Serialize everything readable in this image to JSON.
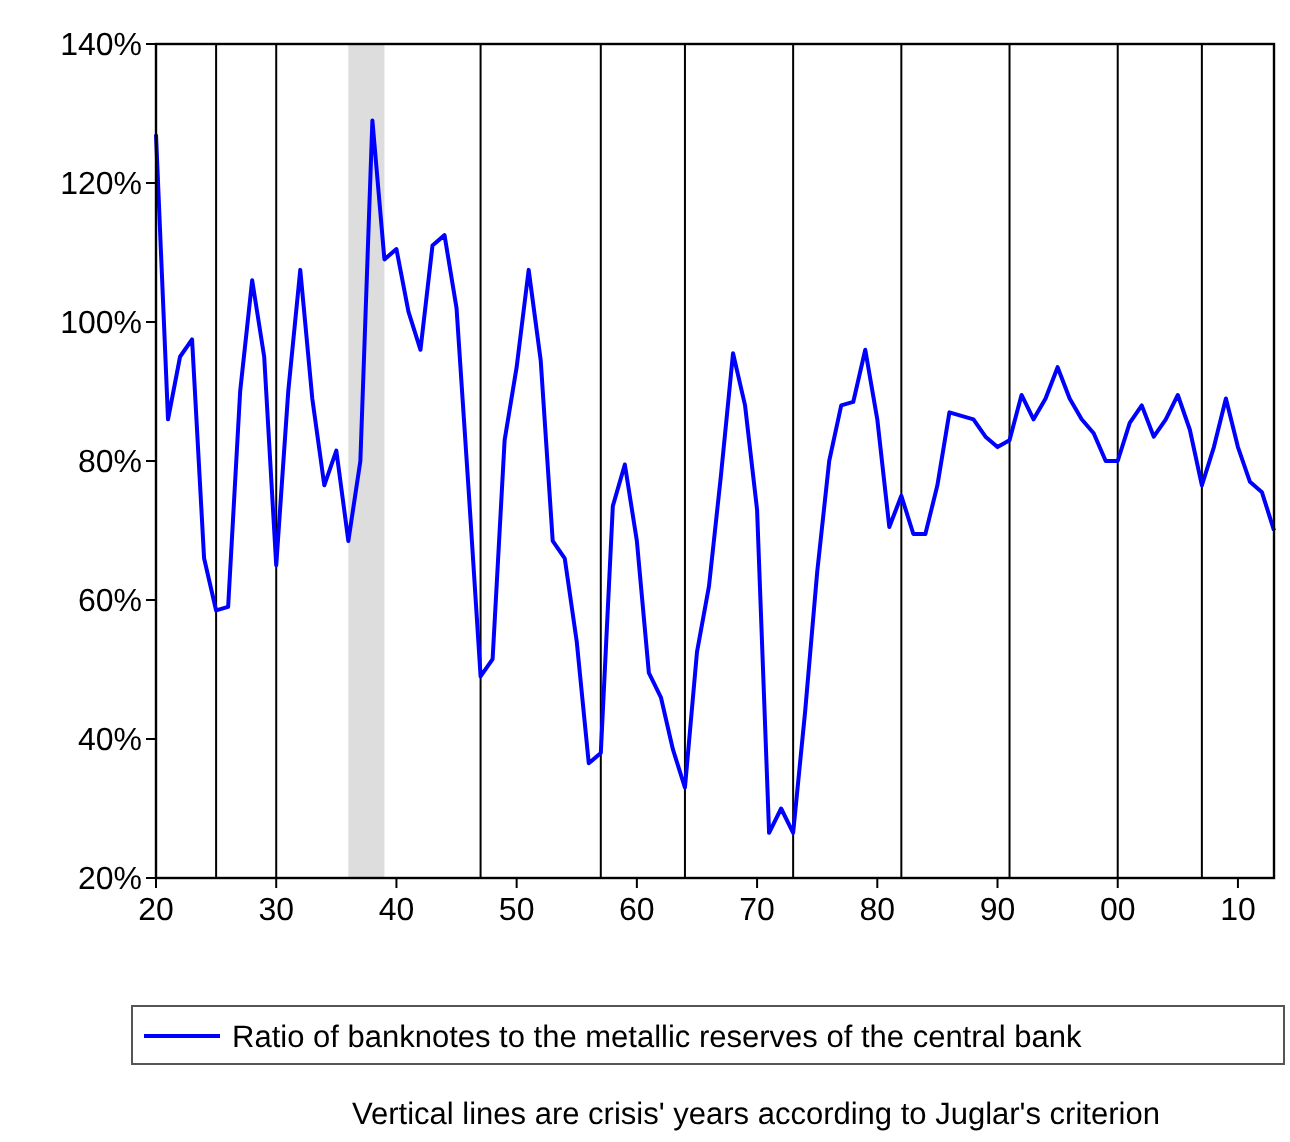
{
  "chart_data": {
    "type": "line",
    "x": [
      1820,
      1821,
      1822,
      1823,
      1824,
      1825,
      1826,
      1827,
      1828,
      1829,
      1830,
      1831,
      1832,
      1833,
      1834,
      1835,
      1836,
      1837,
      1838,
      1839,
      1840,
      1841,
      1842,
      1843,
      1844,
      1845,
      1846,
      1847,
      1848,
      1849,
      1850,
      1851,
      1852,
      1853,
      1854,
      1855,
      1856,
      1857,
      1858,
      1859,
      1860,
      1861,
      1862,
      1863,
      1864,
      1865,
      1866,
      1867,
      1868,
      1869,
      1870,
      1871,
      1872,
      1873,
      1874,
      1875,
      1876,
      1877,
      1878,
      1879,
      1880,
      1881,
      1882,
      1883,
      1884,
      1885,
      1886,
      1887,
      1888,
      1889,
      1890,
      1891,
      1892,
      1893,
      1894,
      1895,
      1896,
      1897,
      1898,
      1899,
      1900,
      1901,
      1902,
      1903,
      1904,
      1905,
      1906,
      1907,
      1908,
      1909,
      1910,
      1911,
      1912,
      1913
    ],
    "series": [
      {
        "name": "Ratio of banknotes to the metallic reserves of the central bank",
        "color": "#0000ff",
        "values": [
          127,
          86,
          95,
          97.5,
          66,
          58.5,
          59,
          90,
          106,
          95,
          65,
          90,
          107.5,
          89,
          76.5,
          81.5,
          68.5,
          80,
          129,
          109,
          110.5,
          101.5,
          96,
          111,
          112.5,
          102,
          76,
          49,
          51.5,
          83,
          93.5,
          107.5,
          94.5,
          68.5,
          66,
          54,
          36.5,
          38,
          73.5,
          79.5,
          68.5,
          49.5,
          46,
          38.5,
          33,
          52.5,
          62,
          78,
          95.5,
          88,
          73,
          26.5,
          30,
          26.5,
          44,
          64,
          80,
          88,
          88.5,
          96,
          86,
          70.5,
          75,
          69.5,
          69.5,
          76.5,
          87,
          86.5,
          86,
          83.5,
          82,
          83,
          89.5,
          86,
          89,
          93.5,
          89,
          86,
          84,
          80,
          80,
          85.5,
          88,
          83.5,
          86,
          89.5,
          84.5,
          76.5,
          82,
          89,
          82,
          77,
          75.5,
          70
        ]
      }
    ],
    "xlim": [
      1820,
      1913
    ],
    "ylim": [
      20,
      140
    ],
    "xticks": [
      {
        "value": 1820,
        "label": "20"
      },
      {
        "value": 1830,
        "label": "30"
      },
      {
        "value": 1840,
        "label": "40"
      },
      {
        "value": 1850,
        "label": "50"
      },
      {
        "value": 1860,
        "label": "60"
      },
      {
        "value": 1870,
        "label": "70"
      },
      {
        "value": 1880,
        "label": "80"
      },
      {
        "value": 1890,
        "label": "90"
      },
      {
        "value": 1900,
        "label": "00"
      },
      {
        "value": 1910,
        "label": "10"
      }
    ],
    "yticks": [
      {
        "value": 20,
        "label": "20%"
      },
      {
        "value": 40,
        "label": "40%"
      },
      {
        "value": 60,
        "label": "60%"
      },
      {
        "value": 80,
        "label": "80%"
      },
      {
        "value": 100,
        "label": "100%"
      },
      {
        "value": 120,
        "label": "120%"
      },
      {
        "value": 140,
        "label": "140%"
      }
    ],
    "ref_lines": [
      {
        "axis": "x",
        "value": 1825,
        "color": "#000000"
      },
      {
        "axis": "x",
        "value": 1830,
        "color": "#000000"
      },
      {
        "axis": "x",
        "value": 1847,
        "color": "#000000"
      },
      {
        "axis": "x",
        "value": 1857,
        "color": "#000000"
      },
      {
        "axis": "x",
        "value": 1864,
        "color": "#000000"
      },
      {
        "axis": "x",
        "value": 1873,
        "color": "#000000"
      },
      {
        "axis": "x",
        "value": 1882,
        "color": "#000000"
      },
      {
        "axis": "x",
        "value": 1891,
        "color": "#000000"
      },
      {
        "axis": "x",
        "value": 1900,
        "color": "#000000"
      },
      {
        "axis": "x",
        "value": 1907,
        "color": "#000000"
      }
    ],
    "bands": [
      {
        "axis": "x",
        "from": 1836,
        "to": 1839,
        "color": "#dddddd"
      }
    ],
    "annotations": [
      "Vertical lines are crisis' years according to Juglar's criterion"
    ],
    "legend": "bottom",
    "grid": false,
    "marker": "none",
    "line_style": "solid"
  }
}
